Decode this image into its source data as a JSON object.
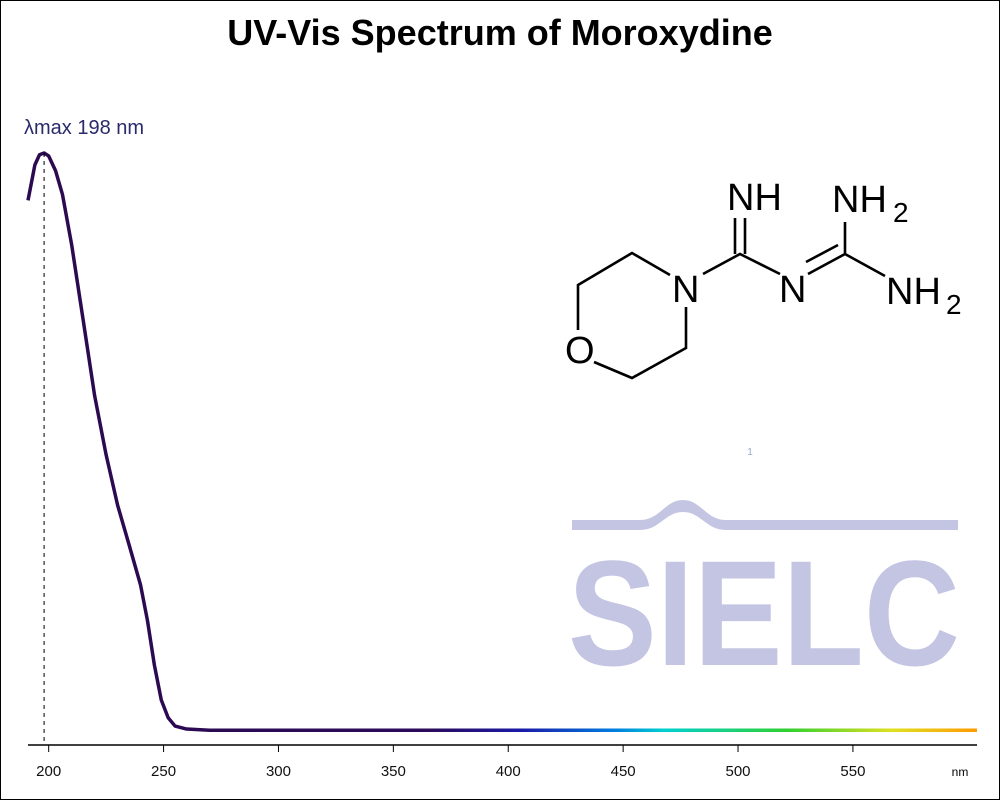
{
  "chart_data": {
    "type": "line",
    "title": "UV-Vis Spectrum of Moroxydine",
    "xlabel": "nm",
    "annotation": {
      "label": "λmax  198 nm",
      "x": 198
    },
    "x": [
      191,
      194,
      196,
      198,
      200,
      203,
      206,
      210,
      215,
      220,
      225,
      230,
      235,
      240,
      243,
      246,
      249,
      252,
      255,
      260,
      270,
      300,
      350,
      400,
      450,
      500,
      550,
      604
    ],
    "values": [
      0.92,
      0.98,
      0.997,
      1.0,
      0.995,
      0.97,
      0.93,
      0.845,
      0.718,
      0.59,
      0.49,
      0.405,
      0.338,
      0.27,
      0.21,
      0.135,
      0.076,
      0.046,
      0.032,
      0.027,
      0.025,
      0.025,
      0.025,
      0.025,
      0.025,
      0.025,
      0.025,
      0.025
    ],
    "xlim": [
      191,
      604
    ],
    "ylim": [
      0,
      1
    ],
    "xticks": [
      200,
      250,
      300,
      350,
      400,
      450,
      500,
      550
    ]
  },
  "structure": {
    "labels": [
      "NH",
      "NH",
      "2",
      "N",
      "N",
      "NH",
      "2",
      "O"
    ]
  },
  "watermark": {
    "text": "SIELC",
    "marker": "1"
  }
}
